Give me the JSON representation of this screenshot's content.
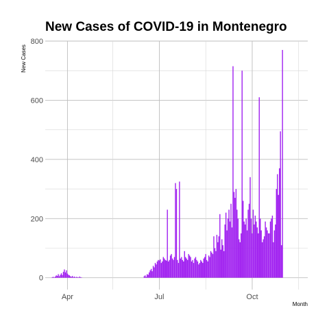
{
  "chart_data": {
    "type": "bar",
    "title": "New Cases of COVID-19 in Montenegro",
    "xlabel": "Month",
    "ylabel": "New Cases",
    "bar_color": "#a020f0",
    "grid": true,
    "ylim": [
      -40,
      800
    ],
    "xlim": [
      "2020-03-10",
      "2020-11-25"
    ],
    "y_ticks": [
      0,
      200,
      400,
      600,
      800
    ],
    "x_ticks": [
      {
        "date": "2020-04-01",
        "label": "Apr"
      },
      {
        "date": "2020-07-01",
        "label": "Jul"
      },
      {
        "date": "2020-10-01",
        "label": "Oct"
      }
    ],
    "x_minor_ticks": [
      "2020-05-16",
      "2020-08-16",
      "2020-11-16"
    ],
    "start_date": "2020-03-17",
    "values": [
      2,
      3,
      1,
      4,
      8,
      6,
      12,
      5,
      10,
      15,
      9,
      20,
      28,
      18,
      25,
      14,
      10,
      8,
      5,
      3,
      6,
      2,
      4,
      1,
      3,
      2,
      1,
      4,
      2,
      1,
      0,
      0,
      0,
      0,
      0,
      0,
      0,
      0,
      0,
      0,
      0,
      0,
      0,
      0,
      0,
      0,
      0,
      0,
      0,
      0,
      0,
      0,
      0,
      0,
      0,
      0,
      0,
      0,
      0,
      0,
      0,
      0,
      0,
      0,
      0,
      0,
      0,
      0,
      0,
      0,
      0,
      0,
      0,
      0,
      0,
      0,
      0,
      0,
      0,
      0,
      0,
      0,
      0,
      0,
      0,
      0,
      0,
      0,
      0,
      0,
      0,
      5,
      8,
      3,
      12,
      10,
      18,
      25,
      30,
      22,
      40,
      35,
      50,
      45,
      55,
      60,
      58,
      62,
      50,
      55,
      70,
      65,
      60,
      58,
      230,
      55,
      60,
      75,
      80,
      65,
      60,
      70,
      320,
      300,
      60,
      50,
      325,
      65,
      70,
      60,
      55,
      90,
      70,
      65,
      60,
      80,
      75,
      70,
      55,
      60,
      50,
      65,
      70,
      60,
      55,
      45,
      50,
      60,
      55,
      50,
      65,
      70,
      80,
      60,
      55,
      75,
      70,
      90,
      85,
      80,
      140,
      100,
      90,
      145,
      120,
      140,
      215,
      95,
      130,
      110,
      90,
      180,
      220,
      160,
      200,
      230,
      190,
      250,
      170,
      715,
      290,
      270,
      300,
      230,
      200,
      130,
      120,
      150,
      700,
      260,
      190,
      180,
      200,
      160,
      230,
      250,
      340,
      200,
      150,
      230,
      180,
      210,
      190,
      170,
      150,
      610,
      200,
      160,
      120,
      130,
      140,
      190,
      170,
      160,
      150,
      150,
      190,
      200,
      210,
      120,
      160,
      180,
      300,
      350,
      280,
      370,
      495,
      110,
      770,
      0
    ]
  }
}
